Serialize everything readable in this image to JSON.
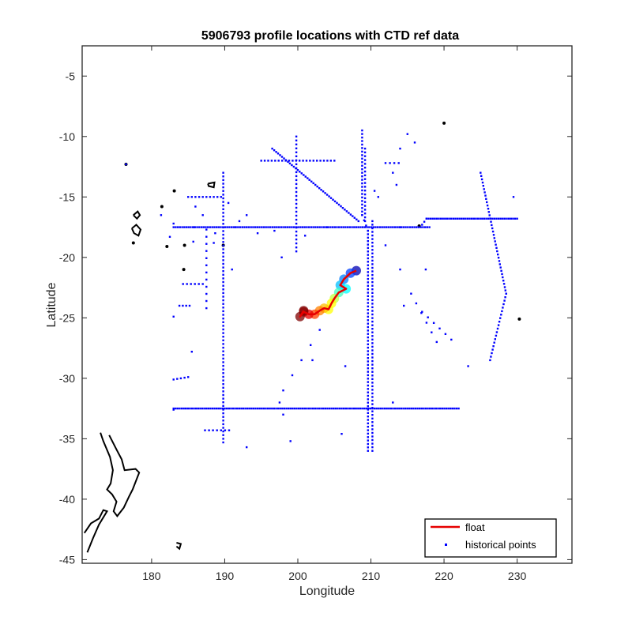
{
  "chart_data": {
    "type": "scatter",
    "title": "5906793 profile locations with CTD ref data",
    "xlabel": "Longitude",
    "ylabel": "Latitude",
    "xlim": [
      170.5,
      237.5
    ],
    "ylim": [
      -45.3,
      -2.5
    ],
    "xticks": [
      180,
      190,
      200,
      210,
      220,
      230
    ],
    "yticks": [
      -45,
      -40,
      -35,
      -30,
      -25,
      -20,
      -15,
      -10,
      -5
    ],
    "grid": false,
    "legend": {
      "placement": "bottom-right",
      "entries": [
        "float",
        "historical points"
      ]
    },
    "colors": {
      "float": "#e60000",
      "historical": "#0000ff",
      "coast": "#000000"
    },
    "series": [
      {
        "name": "float",
        "type": "line",
        "x": [
          208.0,
          207.2,
          206.3,
          205.8,
          206.6,
          205.6,
          205.0,
          204.6,
          204.2,
          203.6,
          203.0,
          202.3,
          201.5,
          200.8,
          200.3,
          200.8
        ],
        "y": [
          -21.1,
          -21.3,
          -21.8,
          -22.3,
          -22.6,
          -22.9,
          -23.4,
          -23.8,
          -24.3,
          -24.2,
          -24.4,
          -24.7,
          -24.7,
          -24.5,
          -24.9,
          -24.4
        ]
      },
      {
        "name": "historical points",
        "type": "scatter",
        "segments": [
          {
            "from": [
              183.0,
              -17.5
            ],
            "to": [
              218.0,
              -17.5
            ],
            "n": 120
          },
          {
            "from": [
              217.0,
              -17.3
            ],
            "to": [
              217.6,
              -16.8
            ],
            "n": 3
          },
          {
            "from": [
              217.6,
              -16.8
            ],
            "to": [
              230.0,
              -16.8
            ],
            "n": 45
          },
          {
            "from": [
              183.0,
              -32.5
            ],
            "to": [
              222.0,
              -32.5
            ],
            "n": 140
          },
          {
            "from": [
              189.8,
              -13.0
            ],
            "to": [
              189.8,
              -35.3
            ],
            "n": 75
          },
          {
            "from": [
              199.8,
              -10.0
            ],
            "to": [
              199.8,
              -19.5
            ],
            "n": 30
          },
          {
            "from": [
              208.8,
              -9.5
            ],
            "to": [
              208.8,
              -16.5
            ],
            "n": 25
          },
          {
            "from": [
              208.8,
              -16.5
            ],
            "to": [
              209.6,
              -17.8
            ],
            "n": 4
          },
          {
            "from": [
              209.6,
              -17.8
            ],
            "to": [
              209.6,
              -36.0
            ],
            "n": 65
          },
          {
            "from": [
              210.2,
              -17.0
            ],
            "to": [
              210.2,
              -36.0
            ],
            "n": 65
          },
          {
            "from": [
              209.2,
              -11.0
            ],
            "to": [
              209.2,
              -17.0
            ],
            "n": 20
          },
          {
            "from": [
              196.5,
              -11.0
            ],
            "to": [
              208.3,
              -17.0
            ],
            "n": 45
          },
          {
            "from": [
              195.0,
              -12.0
            ],
            "to": [
              205.0,
              -12.0
            ],
            "n": 22
          },
          {
            "from": [
              212.0,
              -12.2
            ],
            "to": [
              213.8,
              -12.2
            ],
            "n": 4
          },
          {
            "from": [
              225.0,
              -13.0
            ],
            "to": [
              228.5,
              -23.0
            ],
            "n": 38
          },
          {
            "from": [
              228.5,
              -23.0
            ],
            "to": [
              226.3,
              -28.5
            ],
            "n": 20
          },
          {
            "from": [
              185.0,
              -15.0
            ],
            "to": [
              189.5,
              -15.0
            ],
            "n": 10
          },
          {
            "from": [
              215.5,
              -23.0
            ],
            "to": [
              219.0,
              -27.0
            ],
            "n": 6
          },
          {
            "from": [
              217.0,
              -24.5
            ],
            "to": [
              221.0,
              -26.8
            ],
            "n": 6
          },
          {
            "from": [
              187.5,
              -17.7
            ],
            "to": [
              187.5,
              -24.2
            ],
            "n": 12
          },
          {
            "from": [
              184.3,
              -22.2
            ],
            "to": [
              187.0,
              -22.2
            ],
            "n": 6
          },
          {
            "from": [
              183.0,
              -30.1
            ],
            "to": [
              185.0,
              -29.9
            ],
            "n": 5
          },
          {
            "from": [
              187.3,
              -34.3
            ],
            "to": [
              190.6,
              -34.3
            ],
            "n": 7
          },
          {
            "from": [
              183.0,
              -32.6
            ],
            "to": [
              183.0,
              -17.2
            ],
            "n": 3
          },
          {
            "from": [
              198.0,
              -31.0
            ],
            "to": [
              203.0,
              -26.0
            ],
            "n": 5
          },
          {
            "from": [
              183.8,
              -24.0
            ],
            "to": [
              185.2,
              -24.0
            ],
            "n": 4
          }
        ],
        "points": [
          [
            176.5,
            -12.3
          ],
          [
            181.3,
            -16.5
          ],
          [
            182.5,
            -18.3
          ],
          [
            185.8,
            -17.5
          ],
          [
            185.7,
            -18.7
          ],
          [
            186.0,
            -15.8
          ],
          [
            187.0,
            -16.5
          ],
          [
            190.5,
            -15.5
          ],
          [
            191.5,
            -17.5
          ],
          [
            193.0,
            -16.5
          ],
          [
            194.5,
            -18.0
          ],
          [
            196.8,
            -17.8
          ],
          [
            197.8,
            -20.0
          ],
          [
            191.0,
            -21.0
          ],
          [
            193.0,
            -35.7
          ],
          [
            198.0,
            -33.0
          ],
          [
            199.0,
            -35.2
          ],
          [
            197.5,
            -32.0
          ],
          [
            206.0,
            -34.6
          ],
          [
            206.5,
            -29.0
          ],
          [
            212.0,
            -19.0
          ],
          [
            213.5,
            -14.0
          ],
          [
            214.0,
            -11.0
          ],
          [
            214.0,
            -17.5
          ],
          [
            214.5,
            -24.0
          ],
          [
            213.0,
            -32.0
          ],
          [
            214.0,
            -21.0
          ],
          [
            215.0,
            -9.8
          ],
          [
            216.0,
            -10.5
          ],
          [
            213.0,
            -13.0
          ],
          [
            217.5,
            -21.0
          ],
          [
            223.3,
            -29.0
          ],
          [
            229.5,
            -15.0
          ],
          [
            210.5,
            -14.5
          ],
          [
            211.0,
            -15.0
          ],
          [
            188.7,
            -18.0
          ],
          [
            188.5,
            -18.8
          ],
          [
            201.0,
            -18.2
          ],
          [
            202.0,
            -28.5
          ],
          [
            185.5,
            -27.8
          ],
          [
            192.0,
            -17.0
          ],
          [
            204.0,
            -17.5
          ]
        ]
      }
    ]
  }
}
